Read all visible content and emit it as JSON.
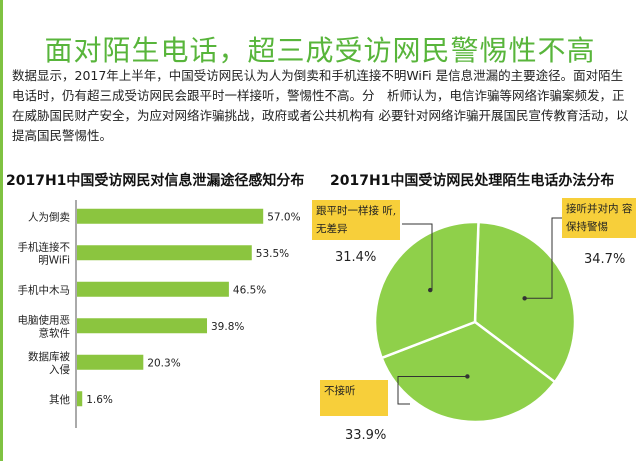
{
  "page": {
    "title": "面对陌生电话，超三成受访网民警惕性不高",
    "intro": "数据显示，2017年上半年，中国受访网民认为人为倒卖和手机连接不明WiFi 是信息泄漏的主要途径。面对陌生电话时，仍有超三成受访网民会跟平时一样接听，警惕性不高。分　析师认为，电信诈骗等网络诈骗案频发，正在威胁国民财产安全，为应对网络诈骗挑战，政府或者公共机构有 必要针对网络诈骗开展国民宣传教育活动，以提高国民警惕性。"
  },
  "chart_data": [
    {
      "type": "bar",
      "orientation": "horizontal",
      "title": "2017H1中国受访网民对信息泄漏途径感知分布",
      "categories": [
        "人为倒卖",
        "手机连接不明WiFi",
        "手机中木马",
        "电脑使用恶意软件",
        "数据库被入侵",
        "其他"
      ],
      "category_lines": [
        [
          "人为倒卖"
        ],
        [
          "手机连接不",
          "明WiFi"
        ],
        [
          "手机中木马"
        ],
        [
          "电脑使用恶",
          "意软件"
        ],
        [
          "数据库被",
          "入侵"
        ],
        [
          "其他"
        ]
      ],
      "values": [
        57.0,
        53.5,
        46.5,
        39.8,
        20.3,
        1.6
      ],
      "value_labels": [
        "57.0%",
        "53.5%",
        "46.5%",
        "39.8%",
        "20.3%",
        "1.6%"
      ],
      "unit": "%",
      "xlim": [
        0,
        60
      ],
      "color": "#8bc53f"
    },
    {
      "type": "pie",
      "title": "2017H1中国受访网民处理陌生电话办法分布",
      "slices": [
        {
          "label": "接听并对内 容保持警惕",
          "label_lines": [
            "接听并对内 容",
            "保持警惕"
          ],
          "value": 34.7,
          "value_label": "34.7%"
        },
        {
          "label": "不接听",
          "label_lines": [
            "不接听"
          ],
          "value": 33.9,
          "value_label": "33.9%"
        },
        {
          "label": "跟平时一样接 听，无差异",
          "label_lines": [
            "跟平时一样接 听,",
            "无差异"
          ],
          "value": 31.4,
          "value_label": "31.4%"
        }
      ],
      "color": "#8fd04a",
      "label_box_color": "#f7cf3a"
    }
  ]
}
